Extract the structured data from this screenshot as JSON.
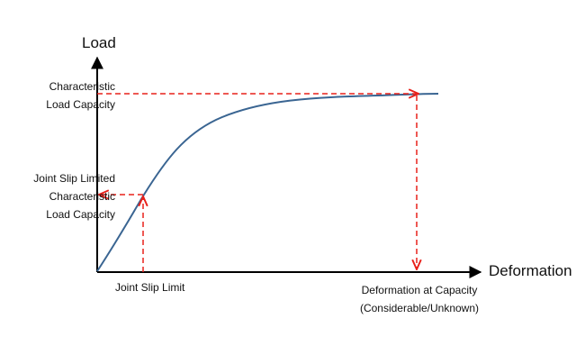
{
  "axes": {
    "y_label": "Load",
    "x_label": "Deformation"
  },
  "annotations": {
    "characteristic_load": [
      "Characteristic",
      "Load Capacity"
    ],
    "joint_slip_limited_load": [
      "Joint Slip Limited",
      "Characteristic",
      "Load Capacity"
    ],
    "joint_slip_limit": "Joint Slip Limit",
    "deformation_at_capacity": [
      "Deformation at Capacity",
      "(Considerable/Unknown)"
    ]
  },
  "colors": {
    "axis": "#000000",
    "curve": "#3A6592",
    "guide": "#E8201A"
  }
}
